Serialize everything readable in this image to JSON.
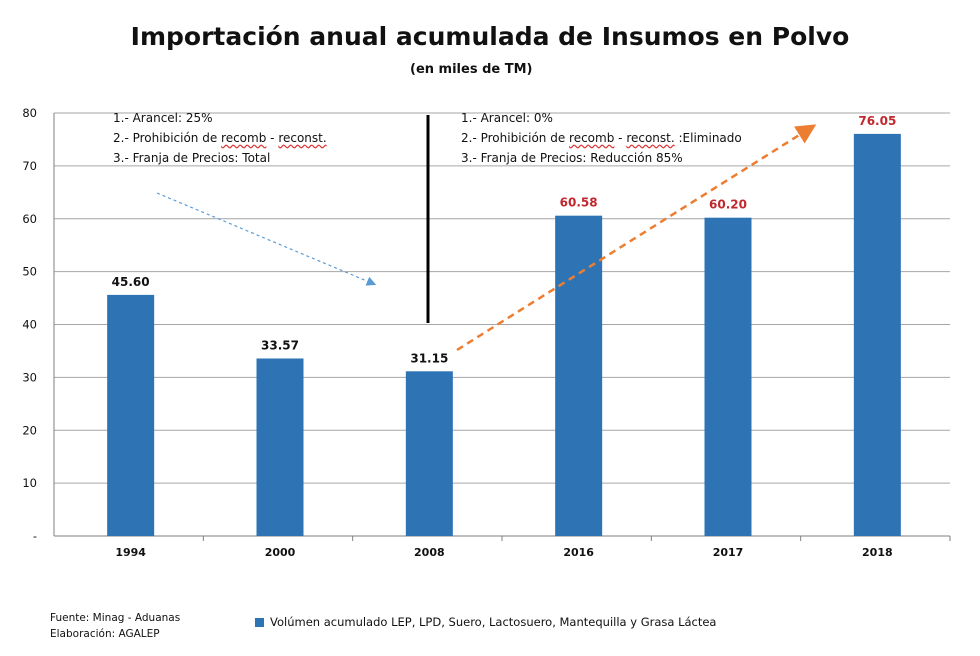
{
  "chart_data": {
    "type": "bar",
    "title": "Importación anual acumulada de Insumos en Polvo",
    "subtitle": "(en miles de TM)",
    "categories": [
      "1994",
      "2000",
      "2008",
      "2016",
      "2017",
      "2018"
    ],
    "values": [
      45.6,
      33.57,
      31.15,
      60.58,
      60.2,
      76.05
    ],
    "value_labels": [
      "45.60",
      "33.57",
      "31.15",
      "60.58",
      "60.20",
      "76.05"
    ],
    "label_colors": [
      "#111111",
      "#111111",
      "#111111",
      "#c0282d",
      "#c0282d",
      "#c0282d"
    ],
    "ylim": [
      0,
      80
    ],
    "yticks": [
      {
        "v": 0,
        "label": "-"
      },
      {
        "v": 10,
        "label": "10"
      },
      {
        "v": 20,
        "label": "20"
      },
      {
        "v": 30,
        "label": "30"
      },
      {
        "v": 40,
        "label": "40"
      },
      {
        "v": 50,
        "label": "50"
      },
      {
        "v": 60,
        "label": "60"
      },
      {
        "v": 70,
        "label": "70"
      },
      {
        "v": 80,
        "label": "80"
      }
    ],
    "grid": true,
    "bar_color": "#2e74b5",
    "legend": "Volúmen acumulado LEP, LPD, Suero, Lactosuero, Mantequilla y Grasa Láctea",
    "legend_position": "bottom"
  },
  "notes_before": {
    "line1": "1.- Arancel: 25%",
    "line2_a": "2.- Prohibición de ",
    "line2_b": "recomb",
    "line2_c": " - ",
    "line2_d": "reconst.",
    "line3": "3.- Franja de Precios: Total"
  },
  "notes_after": {
    "line1": "1.- Arancel: 0%",
    "line2_a": "2.- Prohibición de ",
    "line2_b": "recomb",
    "line2_c": " - ",
    "line2_d": "reconst.",
    "line2_e": " :Eliminado",
    "line3": "3.- Franja de Precios: Reducción 85%"
  },
  "footer": {
    "source": "Fuente: Minag - Aduanas",
    "made_by": "Elaboración: AGALEP"
  },
  "colors": {
    "trend_down": "#5b9bd5",
    "trend_up": "#ed7d31",
    "divider": "#000000"
  }
}
